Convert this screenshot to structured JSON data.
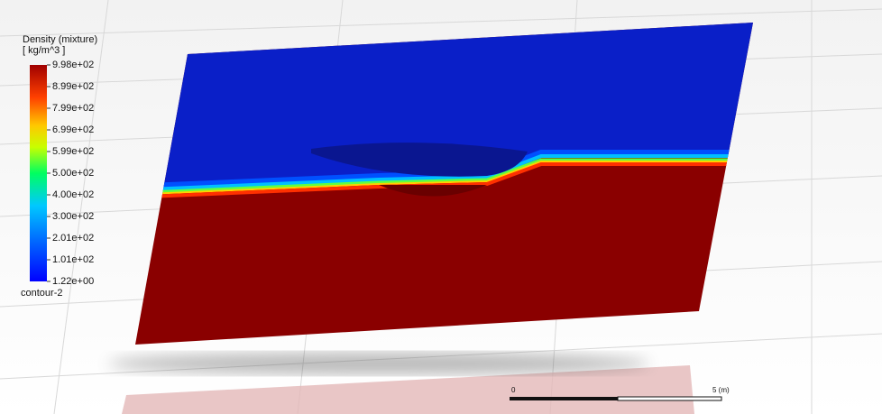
{
  "legend": {
    "title": "Density (mixture)",
    "unit": "[ kg/m^3 ]",
    "ticks": [
      "9.98e+02",
      "8.99e+02",
      "7.99e+02",
      "6.99e+02",
      "5.99e+02",
      "5.00e+02",
      "4.00e+02",
      "3.00e+02",
      "2.01e+02",
      "1.01e+02",
      "1.22e+00"
    ],
    "name": "contour-2"
  },
  "scale_bar": {
    "start": "0",
    "end": "5 (m)"
  }
}
